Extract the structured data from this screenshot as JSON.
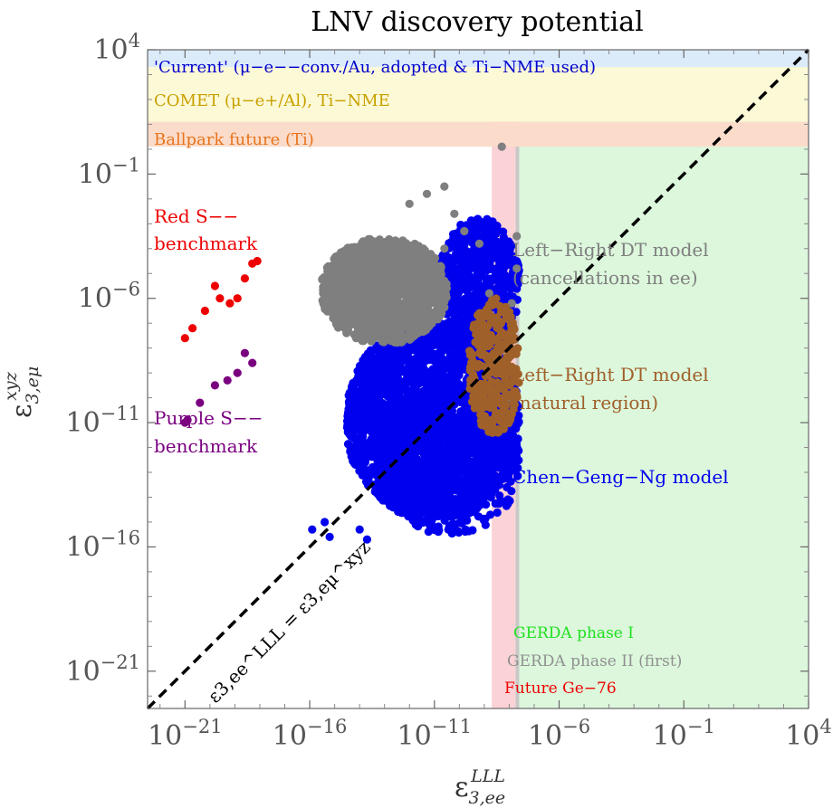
{
  "chart_data": {
    "type": "scatter",
    "title": "LNV discovery potential",
    "xlabel": "ε3,ee^LLL",
    "ylabel": "ε3,eμ^xyz",
    "x_scale": "log10",
    "y_scale": "log10",
    "xlim_log10": [
      -22.5,
      4
    ],
    "ylim_log10": [
      -22.5,
      4
    ],
    "x_ticks": [
      "10−21",
      "10−16",
      "10−11",
      "10−6",
      "10−1",
      "104"
    ],
    "y_ticks": [
      "10−21",
      "10−16",
      "10−11",
      "10−6",
      "10−1",
      "104"
    ],
    "x_tick_log10": [
      -21,
      -16,
      -11,
      -6,
      -1,
      4
    ],
    "y_tick_log10": [
      -21,
      -16,
      -11,
      -6,
      -1,
      4
    ],
    "diagonal": {
      "label": "ε3,ee^LLL = ε3,eμ^xyz",
      "style": "dashed",
      "color": "#000000"
    },
    "horizontal_bands": [
      {
        "label": "'Current' (μ−e−−conv./Au, adopted & Ti−NME used)",
        "y_log10": [
          3.3,
          4
        ],
        "fill": "#dcebfa",
        "text_color": "#0000cc"
      },
      {
        "label": "COMET (μ−e+/Al), Ti−NME",
        "y_log10": [
          1.1,
          3.3
        ],
        "fill": "#fcf9d6",
        "text_color": "#c8a000"
      },
      {
        "label": "Ballpark future (Ti)",
        "y_log10": [
          0.1,
          1.1
        ],
        "fill": "#fbdccb",
        "text_color": "#e8741c"
      }
    ],
    "vertical_bands": [
      {
        "label": "GERDA phase I",
        "x_log10": [
          -7.6,
          4
        ],
        "fill": "#dcf7dc",
        "text_color": "#20e020"
      },
      {
        "label": "GERDA phase II (first)",
        "x_log10": [
          -7.75,
          -7.6
        ],
        "fill": "#c8c8c8",
        "text_color": "#909090"
      },
      {
        "label": "Future Ge−76",
        "x_log10": [
          -8.7,
          -7.75
        ],
        "fill": "#fbd2d6",
        "text_color": "#ee0000"
      }
    ],
    "series": [
      {
        "name": "Red S−− benchmark",
        "color": "#ee0000",
        "points_log10": [
          [
            -21.0,
            -7.6
          ],
          [
            -20.7,
            -7.2
          ],
          [
            -20.2,
            -6.5
          ],
          [
            -19.8,
            -5.5
          ],
          [
            -19.6,
            -6.0
          ],
          [
            -19.2,
            -6.2
          ],
          [
            -18.9,
            -6.0
          ],
          [
            -18.6,
            -5.2
          ],
          [
            -18.3,
            -4.6
          ],
          [
            -18.1,
            -4.5
          ]
        ]
      },
      {
        "name": "Purple S−− benchmark",
        "color": "#7a0080",
        "points_log10": [
          [
            -21.0,
            -11.0
          ],
          [
            -20.9,
            -10.9
          ],
          [
            -20.4,
            -10.2
          ],
          [
            -19.8,
            -9.5
          ],
          [
            -19.3,
            -9.3
          ],
          [
            -18.9,
            -9.0
          ],
          [
            -18.6,
            -8.2
          ],
          [
            -18.3,
            -8.6
          ]
        ]
      },
      {
        "name": "Chen−Geng−Ng model",
        "color": "#0000ee",
        "clusters_log10": [
          {
            "x": [
              -14.5,
              -7.6
            ],
            "y": [
              -14.8,
              -7.0
            ],
            "n": 2600
          },
          {
            "x": [
              -13.2,
              -7.6
            ],
            "y": [
              -15.5,
              -9.5
            ],
            "n": 500
          },
          {
            "x": [
              -10.8,
              -7.6
            ],
            "y": [
              -8.0,
              -2.8
            ],
            "n": 700
          }
        ],
        "edge_points_log10": [
          [
            -15.9,
            -15.3
          ],
          [
            -15.4,
            -15.0
          ],
          [
            -15.2,
            -15.6
          ],
          [
            -14.0,
            -15.3
          ],
          [
            -13.7,
            -15.7
          ]
        ]
      },
      {
        "name": "Left−Right DT model (cancellations in ee)",
        "color": "#7f7f7f",
        "clusters_log10": [
          {
            "x": [
              -15.5,
              -10.5
            ],
            "y": [
              -7.8,
              -3.6
            ],
            "n": 1500
          }
        ],
        "extra_points_log10": [
          [
            -12.0,
            -2.2
          ],
          [
            -11.3,
            -1.8
          ],
          [
            -10.6,
            -1.5
          ],
          [
            -10.2,
            -2.6
          ],
          [
            -9.8,
            -3.3
          ],
          [
            -9.2,
            -3.8
          ],
          [
            -8.3,
            0.1
          ],
          [
            -7.7,
            -3.5
          ],
          [
            -7.7,
            -4.8
          ],
          [
            -8.0,
            -10.0
          ],
          [
            -7.9,
            -6.2
          ],
          [
            -10.6,
            -4.0
          ],
          [
            -8.8,
            -5.8
          ]
        ]
      },
      {
        "name": "Left−Right DT model (natural region)",
        "color": "#a0602a",
        "clusters_log10": [
          {
            "x": [
              -9.6,
              -7.6
            ],
            "y": [
              -11.5,
              -6.0
            ],
            "n": 320
          }
        ]
      }
    ],
    "annotations": [
      {
        "text": "Red S−−",
        "color": "#ee0000"
      },
      {
        "text": "benchmark",
        "color": "#ee0000"
      },
      {
        "text": "Purple S−−",
        "color": "#7a0080"
      },
      {
        "text": "benchmark",
        "color": "#7a0080"
      },
      {
        "text": "Left−Right DT model",
        "color": "#7f7f7f"
      },
      {
        "text": "(cancellations in ee)",
        "color": "#7f7f7f"
      },
      {
        "text": "Left−Right DT model",
        "color": "#a0602a"
      },
      {
        "text": "(natural region)",
        "color": "#a0602a"
      },
      {
        "text": "Chen−Geng−Ng model",
        "color": "#0000ee"
      }
    ]
  }
}
